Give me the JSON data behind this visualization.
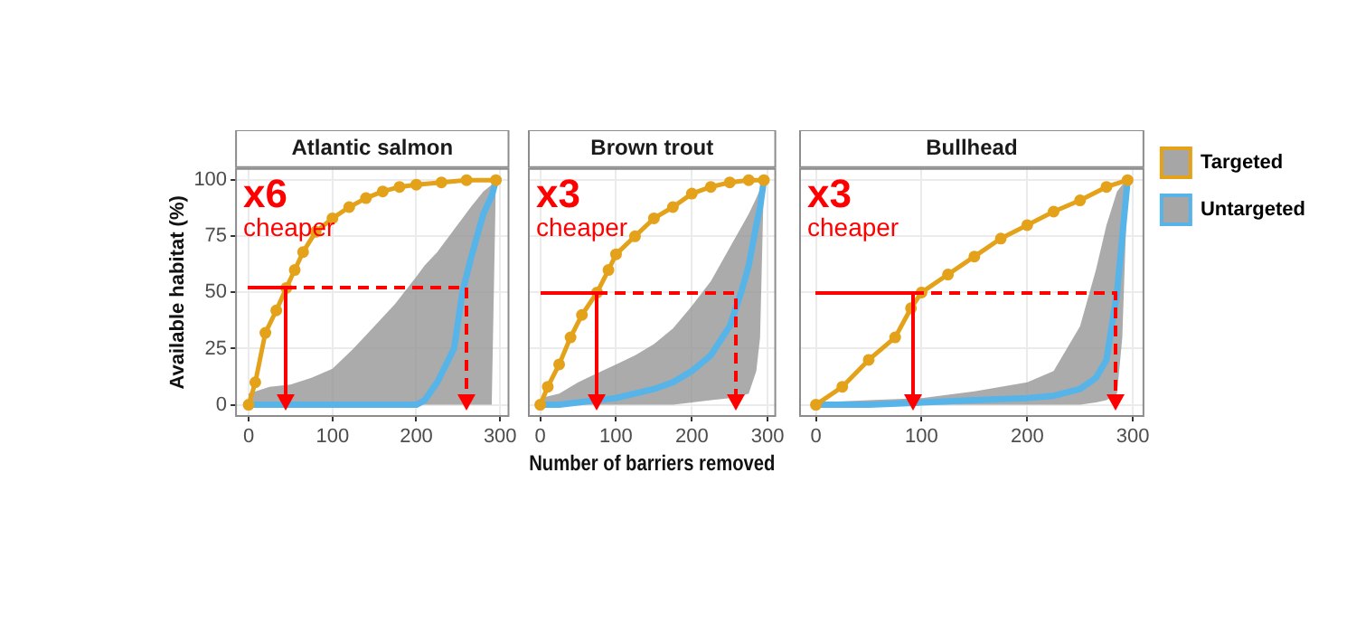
{
  "chart_data": [
    {
      "type": "line",
      "title": "Atlantic salmon",
      "ylabel": "Available habitat (%)",
      "xlim": [
        -15,
        310
      ],
      "ylim": [
        -5,
        105
      ],
      "xticks": [
        0,
        100,
        200,
        300
      ],
      "yticks": [
        0,
        25,
        50,
        75,
        100
      ],
      "grid": true,
      "legend": false,
      "annotations": [
        "x6",
        "cheaper"
      ],
      "series": [
        {
          "color": "#e3a21a",
          "marker": "circle",
          "x": [
            0,
            8,
            20,
            33,
            45,
            55,
            65,
            80,
            100,
            120,
            140,
            160,
            180,
            200,
            230,
            260,
            295
          ],
          "values": [
            0,
            10,
            32,
            42,
            52,
            60,
            68,
            77,
            83,
            88,
            92,
            95,
            97,
            98,
            99,
            100,
            100
          ]
        },
        {
          "color": "#56b4e9",
          "marker": "none",
          "x": [
            0,
            25,
            50,
            75,
            100,
            125,
            150,
            175,
            200,
            210,
            225,
            245,
            255,
            265,
            280,
            290,
            295
          ],
          "values": [
            0,
            0,
            0,
            0,
            0,
            0,
            0,
            0,
            0,
            2,
            10,
            25,
            50,
            65,
            85,
            93,
            100
          ],
          "lower": [
            0,
            0,
            0,
            0,
            0,
            0,
            0,
            0,
            0,
            0,
            0,
            0,
            0,
            0,
            0,
            0,
            100
          ],
          "upper": [
            5,
            8,
            9,
            12,
            16,
            25,
            35,
            45,
            57,
            62,
            68,
            78,
            83,
            88,
            95,
            98,
            100
          ]
        }
      ]
    },
    {
      "type": "line",
      "title": "Brown trout",
      "xlabel": "Number of barriers removed",
      "xlim": [
        -15,
        310
      ],
      "ylim": [
        -5,
        105
      ],
      "xticks": [
        0,
        100,
        200,
        300
      ],
      "yticks": [
        0,
        25,
        50,
        75,
        100
      ],
      "grid": true,
      "legend": false,
      "tick_labels": "x",
      "annotations": [
        "x3",
        "cheaper"
      ],
      "series": [
        {
          "color": "#e3a21a",
          "marker": "circle",
          "x": [
            0,
            10,
            25,
            40,
            55,
            75,
            90,
            100,
            125,
            150,
            175,
            200,
            225,
            250,
            275,
            295
          ],
          "values": [
            0,
            8,
            18,
            30,
            40,
            50,
            60,
            67,
            75,
            83,
            88,
            94,
            97,
            99,
            100,
            100
          ]
        },
        {
          "color": "#56b4e9",
          "marker": "none",
          "x": [
            0,
            25,
            50,
            75,
            100,
            125,
            150,
            175,
            200,
            225,
            250,
            265,
            275,
            285,
            290,
            295
          ],
          "values": [
            0,
            0,
            1,
            2,
            3,
            5,
            7,
            10,
            15,
            22,
            35,
            50,
            62,
            80,
            88,
            100
          ],
          "lower": [
            0,
            0,
            0,
            0,
            0,
            0,
            0,
            0,
            1,
            2,
            3,
            4,
            5,
            15,
            30,
            100
          ],
          "upper": [
            3,
            5,
            10,
            14,
            18,
            22,
            27,
            34,
            44,
            55,
            70,
            79,
            85,
            92,
            96,
            100
          ]
        }
      ]
    },
    {
      "type": "line",
      "title": "Bullhead",
      "xlim": [
        -15,
        310
      ],
      "ylim": [
        -5,
        105
      ],
      "xticks": [
        0,
        100,
        200,
        300
      ],
      "yticks": [
        0,
        25,
        50,
        75,
        100
      ],
      "grid": true,
      "legend": "right",
      "tick_labels": "x",
      "annotations": [
        "x3",
        "cheaper"
      ],
      "series": [
        {
          "name": "Targeted",
          "color": "#e3a21a",
          "marker": "circle",
          "x": [
            0,
            25,
            50,
            75,
            90,
            100,
            125,
            150,
            175,
            200,
            225,
            250,
            275,
            295
          ],
          "values": [
            0,
            8,
            20,
            30,
            43,
            50,
            58,
            66,
            74,
            80,
            86,
            91,
            97,
            100
          ]
        },
        {
          "name": "Untargeted",
          "color": "#56b4e9",
          "marker": "none",
          "x": [
            0,
            50,
            100,
            150,
            200,
            225,
            250,
            265,
            275,
            285,
            290,
            295
          ],
          "values": [
            0,
            0,
            1,
            2,
            3,
            4,
            7,
            12,
            20,
            50,
            75,
            100
          ],
          "lower": [
            0,
            0,
            0,
            0,
            0,
            0,
            0,
            1,
            2,
            5,
            30,
            100
          ],
          "upper": [
            1,
            2,
            3,
            6,
            10,
            15,
            35,
            60,
            80,
            95,
            98,
            100
          ]
        }
      ]
    }
  ]
}
